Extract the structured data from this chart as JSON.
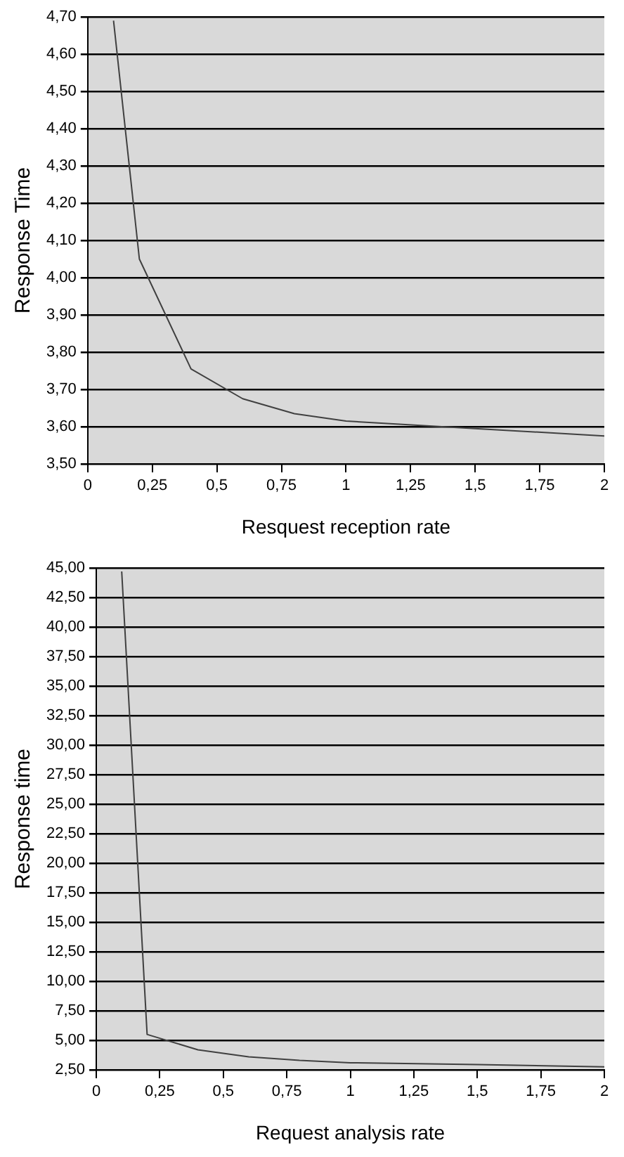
{
  "chart_data": [
    {
      "type": "line",
      "xlabel": "Resquest reception rate",
      "ylabel": "Response Time",
      "x": [
        0.1,
        0.2,
        0.4,
        0.6,
        0.8,
        1,
        1.5,
        2
      ],
      "series": [
        {
          "color": "#404040",
          "values": [
            4.69,
            4.05,
            3.755,
            3.675,
            3.635,
            3.615,
            3.595,
            3.575
          ]
        }
      ],
      "xlim": [
        0,
        2
      ],
      "xticks": [
        0,
        {
          "value": 0.25,
          "label": "0,25"
        },
        {
          "value": 0.5,
          "label": "0,5"
        },
        {
          "value": 0.75,
          "label": "0,75"
        },
        1,
        {
          "value": 1.25,
          "label": "1,25"
        },
        {
          "value": 1.5,
          "label": "1,5"
        },
        {
          "value": 1.75,
          "label": "1,75"
        },
        2
      ],
      "ylim": [
        3.5,
        4.7
      ],
      "yticks": [
        {
          "value": 3.5,
          "label": "3,50"
        },
        {
          "value": 3.6,
          "label": "3,60"
        },
        {
          "value": 3.7,
          "label": "3,70"
        },
        {
          "value": 3.8,
          "label": "3,80"
        },
        {
          "value": 3.9,
          "label": "3,90"
        },
        {
          "value": 4.0,
          "label": "4,00"
        },
        {
          "value": 4.1,
          "label": "4,10"
        },
        {
          "value": 4.2,
          "label": "4,20"
        },
        {
          "value": 4.3,
          "label": "4,30"
        },
        {
          "value": 4.4,
          "label": "4,40"
        },
        {
          "value": 4.5,
          "label": "4,50"
        },
        {
          "value": 4.6,
          "label": "4,60"
        },
        {
          "value": 4.7,
          "label": "4,70"
        }
      ],
      "grid": "y",
      "legend": false,
      "marker": "none",
      "line_style": "solid"
    },
    {
      "type": "line",
      "xlabel": "Request analysis rate",
      "ylabel": "Response time",
      "x": [
        0.1,
        0.2,
        0.4,
        0.6,
        0.8,
        1,
        1.5,
        2
      ],
      "series": [
        {
          "color": "#404040",
          "values": [
            44.7,
            5.5,
            4.2,
            3.6,
            3.3,
            3.1,
            2.95,
            2.75
          ]
        }
      ],
      "xlim": [
        0,
        2
      ],
      "xticks": [
        0,
        {
          "value": 0.25,
          "label": "0,25"
        },
        {
          "value": 0.5,
          "label": "0,5"
        },
        {
          "value": 0.75,
          "label": "0,75"
        },
        1,
        {
          "value": 1.25,
          "label": "1,25"
        },
        {
          "value": 1.5,
          "label": "1,5"
        },
        {
          "value": 1.75,
          "label": "1,75"
        },
        2
      ],
      "ylim": [
        2.5,
        45
      ],
      "yticks": [
        {
          "value": 2.5,
          "label": "2,50"
        },
        {
          "value": 5,
          "label": "5,00"
        },
        {
          "value": 7.5,
          "label": "7,50"
        },
        {
          "value": 10,
          "label": "10,00"
        },
        {
          "value": 12.5,
          "label": "12,50"
        },
        {
          "value": 15,
          "label": "15,00"
        },
        {
          "value": 17.5,
          "label": "17,50"
        },
        {
          "value": 20,
          "label": "20,00"
        },
        {
          "value": 22.5,
          "label": "22,50"
        },
        {
          "value": 25,
          "label": "25,00"
        },
        {
          "value": 27.5,
          "label": "27,50"
        },
        {
          "value": 30,
          "label": "30,00"
        },
        {
          "value": 32.5,
          "label": "32,50"
        },
        {
          "value": 35,
          "label": "35,00"
        },
        {
          "value": 37.5,
          "label": "37,50"
        },
        {
          "value": 40,
          "label": "40,00"
        },
        {
          "value": 42.5,
          "label": "42,50"
        },
        {
          "value": 45,
          "label": "45,00"
        }
      ],
      "grid": "y",
      "legend": false,
      "marker": "none",
      "line_style": "solid"
    }
  ]
}
